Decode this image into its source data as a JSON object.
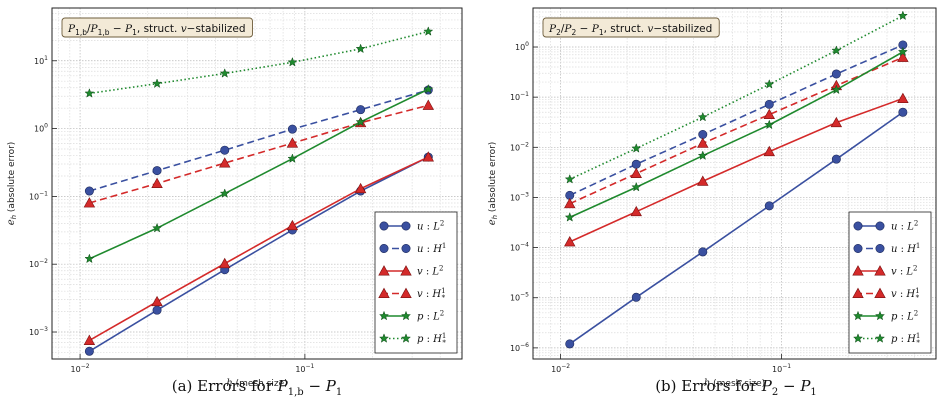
{
  "chart_data": [
    {
      "type": "line",
      "scale": "log-log",
      "title": "P_{1,b}/P_{1,b} − P_1, struct. v−stabilized",
      "title_parts": {
        "a": "P",
        "a_sub": "1,b",
        "sep": "/",
        "b": "P",
        "b_sub": "1,b",
        "dash": " − ",
        "c": "P",
        "c_sub": "1",
        "rest": ", struct. ",
        "var": "v",
        "rest2": "−stabilized"
      },
      "xlabel": {
        "var": "h",
        "text": " (mesh size)"
      },
      "ylabel": {
        "var": "e",
        "sub": "h",
        "text": " (absolute error)"
      },
      "xlim": [
        0.0075,
        0.5
      ],
      "ylim": [
        0.0004,
        60
      ],
      "xticks": [
        {
          "v": 0.01,
          "base": "10",
          "exp": "−2"
        },
        {
          "v": 0.1,
          "base": "10",
          "exp": "−1"
        }
      ],
      "yticks": [
        {
          "v": 0.001,
          "base": "10",
          "exp": "−3"
        },
        {
          "v": 0.01,
          "base": "10",
          "exp": "−2"
        },
        {
          "v": 0.1,
          "base": "10",
          "exp": "−1"
        },
        {
          "v": 1,
          "base": "10",
          "exp": "0"
        },
        {
          "v": 10,
          "base": "10",
          "exp": "1"
        }
      ],
      "legend_position": "lower-right",
      "x": [
        0.011,
        0.022,
        0.044,
        0.088,
        0.177,
        0.354
      ],
      "series": [
        {
          "name": "u : L^2",
          "label": {
            "var": "u",
            "norm": "L",
            "sup": "2",
            "sub": ""
          },
          "color": "#3a50a0",
          "marker": "circle",
          "dash": "solid",
          "values": [
            0.00052,
            0.0021,
            0.0083,
            0.032,
            0.12,
            0.38
          ]
        },
        {
          "name": "u : H^1",
          "label": {
            "var": "u",
            "norm": "H",
            "sup": "1",
            "sub": ""
          },
          "color": "#3a50a0",
          "marker": "circle",
          "dash": "dashed",
          "values": [
            0.12,
            0.24,
            0.48,
            0.98,
            1.9,
            3.7
          ]
        },
        {
          "name": "v : L^2",
          "label": {
            "var": "v",
            "norm": "L",
            "sup": "2",
            "sub": ""
          },
          "color": "#d42a2a",
          "marker": "triangle",
          "dash": "solid",
          "values": [
            0.00075,
            0.0028,
            0.0102,
            0.037,
            0.13,
            0.38
          ]
        },
        {
          "name": "v : H^1_*",
          "label": {
            "var": "v",
            "norm": "H",
            "sup": "1",
            "sub": "*"
          },
          "color": "#d42a2a",
          "marker": "triangle",
          "dash": "dashed",
          "values": [
            0.08,
            0.155,
            0.31,
            0.61,
            1.22,
            2.2
          ]
        },
        {
          "name": "p : L^2",
          "label": {
            "var": "p",
            "norm": "L",
            "sup": "2",
            "sub": ""
          },
          "color": "#1f8a2e",
          "marker": "star",
          "dash": "solid",
          "values": [
            0.012,
            0.034,
            0.11,
            0.36,
            1.25,
            3.8
          ]
        },
        {
          "name": "p : H^1_*",
          "label": {
            "var": "p",
            "norm": "H",
            "sup": "1",
            "sub": "*"
          },
          "color": "#1f8a2e",
          "marker": "star",
          "dash": "dotted",
          "values": [
            3.3,
            4.6,
            6.5,
            9.5,
            15.0,
            27.0
          ]
        }
      ],
      "caption": {
        "prefix": "(a)  Errors for ",
        "a": "P",
        "a_sub": "1,b",
        "dash": " − ",
        "b": "P",
        "b_sub": "1"
      }
    },
    {
      "type": "line",
      "scale": "log-log",
      "title": "P_2/P_2 − P_1, struct. v−stabilized",
      "title_parts": {
        "a": "P",
        "a_sub": "2",
        "sep": "/",
        "b": "P",
        "b_sub": "2",
        "dash": " − ",
        "c": "P",
        "c_sub": "1",
        "rest": ", struct. ",
        "var": "v",
        "rest2": "−stabilized"
      },
      "xlabel": {
        "var": "h",
        "text": " (mesh size)"
      },
      "ylabel": {
        "var": "e",
        "sub": "h",
        "text": " (absolute error)"
      },
      "xlim": [
        0.0075,
        0.5
      ],
      "ylim": [
        6e-07,
        6
      ],
      "xticks": [
        {
          "v": 0.01,
          "base": "10",
          "exp": "−2"
        },
        {
          "v": 0.1,
          "base": "10",
          "exp": "−1"
        }
      ],
      "yticks": [
        {
          "v": 1e-06,
          "base": "10",
          "exp": "−6"
        },
        {
          "v": 1e-05,
          "base": "10",
          "exp": "−5"
        },
        {
          "v": 0.0001,
          "base": "10",
          "exp": "−4"
        },
        {
          "v": 0.001,
          "base": "10",
          "exp": "−3"
        },
        {
          "v": 0.01,
          "base": "10",
          "exp": "−2"
        },
        {
          "v": 0.1,
          "base": "10",
          "exp": "−1"
        },
        {
          "v": 1,
          "base": "10",
          "exp": "0"
        }
      ],
      "legend_position": "lower-right",
      "x": [
        0.011,
        0.022,
        0.044,
        0.088,
        0.177,
        0.354
      ],
      "series": [
        {
          "name": "u : L^2",
          "label": {
            "var": "u",
            "norm": "L",
            "sup": "2",
            "sub": ""
          },
          "color": "#3a50a0",
          "marker": "circle",
          "dash": "solid",
          "values": [
            1.2e-06,
            1.02e-05,
            8.2e-05,
            0.00068,
            0.0058,
            0.05
          ]
        },
        {
          "name": "u : H^1",
          "label": {
            "var": "u",
            "norm": "H",
            "sup": "1",
            "sub": ""
          },
          "color": "#3a50a0",
          "marker": "circle",
          "dash": "dashed",
          "values": [
            0.0011,
            0.0046,
            0.018,
            0.072,
            0.29,
            1.1
          ]
        },
        {
          "name": "v : L^2",
          "label": {
            "var": "v",
            "norm": "L",
            "sup": "2",
            "sub": ""
          },
          "color": "#d42a2a",
          "marker": "triangle",
          "dash": "solid",
          "values": [
            0.00013,
            0.00052,
            0.0021,
            0.0082,
            0.031,
            0.094
          ]
        },
        {
          "name": "v : H^1_*",
          "label": {
            "var": "v",
            "norm": "H",
            "sup": "1",
            "sub": "*"
          },
          "color": "#d42a2a",
          "marker": "triangle",
          "dash": "dashed",
          "values": [
            0.00075,
            0.003,
            0.012,
            0.045,
            0.17,
            0.62
          ]
        },
        {
          "name": "p : L^2",
          "label": {
            "var": "p",
            "norm": "L",
            "sup": "2",
            "sub": ""
          },
          "color": "#1f8a2e",
          "marker": "star",
          "dash": "solid",
          "values": [
            0.0004,
            0.0016,
            0.0068,
            0.028,
            0.14,
            0.8
          ]
        },
        {
          "name": "p : H^1_*",
          "label": {
            "var": "p",
            "norm": "H",
            "sup": "1",
            "sub": "*"
          },
          "color": "#1f8a2e",
          "marker": "star",
          "dash": "dotted",
          "values": [
            0.0023,
            0.0095,
            0.04,
            0.18,
            0.85,
            4.2
          ]
        }
      ],
      "caption": {
        "prefix": "(b)  Errors for ",
        "a": "P",
        "a_sub": "2",
        "dash": " − ",
        "b": "P",
        "b_sub": "1"
      }
    }
  ]
}
